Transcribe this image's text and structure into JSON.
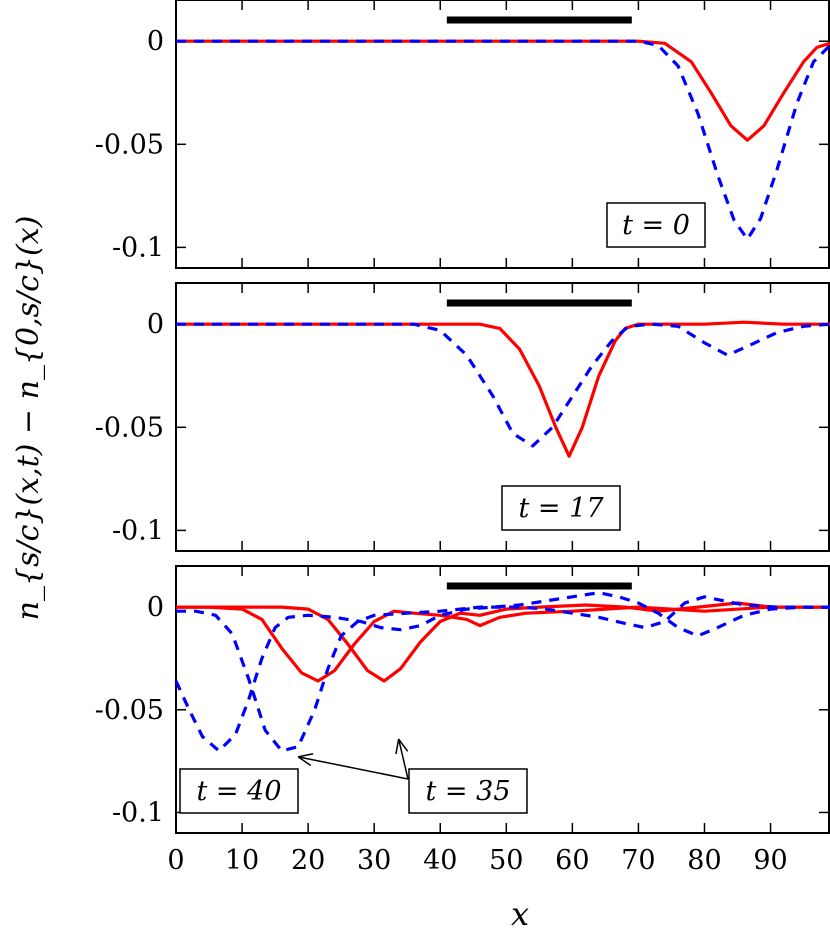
{
  "chart_data": {
    "type": "line",
    "ylabel": "n_{s/c}(x,t) − n_{0,s/c}(x)",
    "xlabel": "x",
    "x_ticks": [
      0,
      10,
      20,
      30,
      40,
      50,
      60,
      70,
      80,
      90
    ],
    "y_ticks": [
      {
        "value": 0,
        "label": "0"
      },
      {
        "value": -0.05,
        "label": "-0.05"
      },
      {
        "value": -0.1,
        "label": "-0.1"
      }
    ],
    "xlim": [
      0,
      99
    ],
    "ylim": [
      -0.11,
      0.02
    ],
    "bar_region": [
      41,
      69
    ],
    "colors": {
      "solid": "#ff0000",
      "dashed": "#0000ff",
      "bar": "#000000"
    },
    "panels": [
      {
        "label": "t = 0",
        "series": [
          {
            "style": "solid",
            "points": [
              [
                0,
                0
              ],
              [
                70,
                0
              ],
              [
                74,
                -0.001
              ],
              [
                78,
                -0.01
              ],
              [
                81,
                -0.025
              ],
              [
                84,
                -0.041
              ],
              [
                86.5,
                -0.048
              ],
              [
                89,
                -0.041
              ],
              [
                92,
                -0.025
              ],
              [
                95,
                -0.01
              ],
              [
                97,
                -0.003
              ],
              [
                99,
                -0.001
              ]
            ]
          },
          {
            "style": "dashed",
            "points": [
              [
                0,
                0
              ],
              [
                70,
                0
              ],
              [
                73,
                -0.002
              ],
              [
                76,
                -0.012
              ],
              [
                79,
                -0.035
              ],
              [
                82,
                -0.065
              ],
              [
                84.5,
                -0.087
              ],
              [
                86.5,
                -0.096
              ],
              [
                88.5,
                -0.086
              ],
              [
                91,
                -0.062
              ],
              [
                94,
                -0.03
              ],
              [
                96.5,
                -0.01
              ],
              [
                99,
                -0.002
              ]
            ]
          }
        ]
      },
      {
        "label": "t = 17",
        "series": [
          {
            "style": "solid",
            "points": [
              [
                0,
                0
              ],
              [
                46,
                0
              ],
              [
                49,
                -0.002
              ],
              [
                52,
                -0.012
              ],
              [
                55,
                -0.03
              ],
              [
                57.5,
                -0.05
              ],
              [
                59.5,
                -0.064
              ],
              [
                61.5,
                -0.05
              ],
              [
                64,
                -0.025
              ],
              [
                66.5,
                -0.008
              ],
              [
                68,
                -0.002
              ],
              [
                70,
                0
              ],
              [
                75,
                0
              ],
              [
                80,
                0
              ],
              [
                86,
                0.001
              ],
              [
                92,
                0
              ],
              [
                99,
                0
              ]
            ]
          },
          {
            "style": "dashed",
            "points": [
              [
                0,
                0
              ],
              [
                36,
                0
              ],
              [
                40,
                -0.003
              ],
              [
                44,
                -0.015
              ],
              [
                48,
                -0.035
              ],
              [
                51,
                -0.053
              ],
              [
                54,
                -0.059
              ],
              [
                57,
                -0.05
              ],
              [
                60,
                -0.035
              ],
              [
                63,
                -0.02
              ],
              [
                66,
                -0.008
              ],
              [
                68.5,
                -0.001
              ],
              [
                72,
                0
              ],
              [
                76,
                -0.001
              ],
              [
                80,
                -0.009
              ],
              [
                83.5,
                -0.015
              ],
              [
                87,
                -0.01
              ],
              [
                91,
                -0.004
              ],
              [
                95,
                -0.001
              ],
              [
                99,
                0
              ]
            ]
          }
        ]
      },
      {
        "label": "t = 40",
        "label2": "t = 35",
        "series": [
          {
            "style": "solid",
            "points": [
              [
                0,
                0
              ],
              [
                5,
                0
              ],
              [
                10,
                -0.001
              ],
              [
                13,
                -0.006
              ],
              [
                16,
                -0.02
              ],
              [
                19,
                -0.032
              ],
              [
                21.5,
                -0.036
              ],
              [
                24,
                -0.031
              ],
              [
                27,
                -0.018
              ],
              [
                30,
                -0.007
              ],
              [
                33,
                -0.002
              ],
              [
                36,
                -0.003
              ],
              [
                40,
                -0.004
              ],
              [
                44,
                -0.006
              ],
              [
                46,
                -0.009
              ],
              [
                49,
                -0.005
              ],
              [
                53,
                -0.003
              ],
              [
                60,
                -0.002
              ],
              [
                70,
                0
              ],
              [
                80,
                -0.002
              ],
              [
                90,
                0
              ],
              [
                99,
                0
              ]
            ]
          },
          {
            "style": "solid",
            "points": [
              [
                0,
                0
              ],
              [
                10,
                0
              ],
              [
                16,
                0
              ],
              [
                20,
                -0.001
              ],
              [
                23,
                -0.006
              ],
              [
                26,
                -0.018
              ],
              [
                29,
                -0.031
              ],
              [
                31.5,
                -0.036
              ],
              [
                34,
                -0.03
              ],
              [
                37,
                -0.017
              ],
              [
                40,
                -0.007
              ],
              [
                43,
                -0.003
              ],
              [
                46,
                -0.004
              ],
              [
                50,
                -0.001
              ],
              [
                55,
                0
              ],
              [
                62,
                0.001
              ],
              [
                68,
                0
              ],
              [
                73,
                -0.002
              ],
              [
                79,
                0
              ],
              [
                85,
                0.002
              ],
              [
                90,
                0
              ],
              [
                99,
                0
              ]
            ]
          },
          {
            "style": "dashed",
            "points": [
              [
                0,
                -0.036
              ],
              [
                2,
                -0.05
              ],
              [
                4,
                -0.063
              ],
              [
                6.5,
                -0.07
              ],
              [
                9,
                -0.062
              ],
              [
                11,
                -0.045
              ],
              [
                13,
                -0.025
              ],
              [
                15,
                -0.01
              ],
              [
                17,
                -0.005
              ],
              [
                20,
                -0.004
              ],
              [
                24,
                -0.005
              ],
              [
                28,
                -0.007
              ],
              [
                31,
                -0.01
              ],
              [
                34,
                -0.011
              ],
              [
                37,
                -0.009
              ],
              [
                40,
                -0.004
              ],
              [
                44,
                -0.001
              ],
              [
                48,
                0
              ],
              [
                52,
                0.001
              ],
              [
                56,
                0.003
              ],
              [
                60,
                0.005
              ],
              [
                64,
                0.007
              ],
              [
                67,
                0.005
              ],
              [
                70,
                0.002
              ],
              [
                73,
                -0.003
              ],
              [
                76,
                -0.01
              ],
              [
                79,
                -0.014
              ],
              [
                82,
                -0.01
              ],
              [
                86,
                -0.004
              ],
              [
                90,
                -0.001
              ],
              [
                95,
                0
              ],
              [
                99,
                0
              ]
            ]
          },
          {
            "style": "dashed",
            "points": [
              [
                0,
                -0.002
              ],
              [
                3,
                -0.002
              ],
              [
                6,
                -0.004
              ],
              [
                8.5,
                -0.013
              ],
              [
                11,
                -0.035
              ],
              [
                13.5,
                -0.06
              ],
              [
                16,
                -0.07
              ],
              [
                18.5,
                -0.068
              ],
              [
                21,
                -0.05
              ],
              [
                23,
                -0.03
              ],
              [
                25,
                -0.014
              ],
              [
                27.5,
                -0.007
              ],
              [
                30,
                -0.004
              ],
              [
                35,
                -0.003
              ],
              [
                40,
                -0.002
              ],
              [
                46,
                0
              ],
              [
                52,
                0
              ],
              [
                56,
                -0.001
              ],
              [
                60,
                -0.003
              ],
              [
                64,
                -0.005
              ],
              [
                68,
                -0.008
              ],
              [
                71,
                -0.01
              ],
              [
                74,
                -0.007
              ],
              [
                77,
                0.002
              ],
              [
                80,
                0.005
              ],
              [
                83,
                0.003
              ],
              [
                86,
                0.001
              ],
              [
                91,
                0
              ],
              [
                99,
                0
              ]
            ]
          }
        ]
      }
    ]
  }
}
